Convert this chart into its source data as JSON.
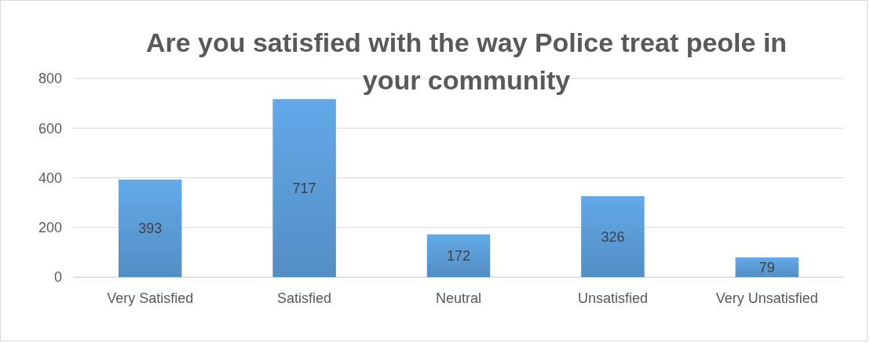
{
  "chart_data": {
    "type": "bar",
    "title": "Are you satisfied with the way Police treat peole in your community",
    "categories": [
      "Very Satisfied",
      "Satisfied",
      "Neutral",
      "Unsatisfied",
      "Very Unsatisfied"
    ],
    "values": [
      393,
      717,
      172,
      326,
      79
    ],
    "color": "#5b9bd5",
    "ylim": [
      0,
      800
    ],
    "yticks": [
      0,
      200,
      400,
      600,
      800
    ],
    "grid": "y",
    "data_labels": true
  }
}
